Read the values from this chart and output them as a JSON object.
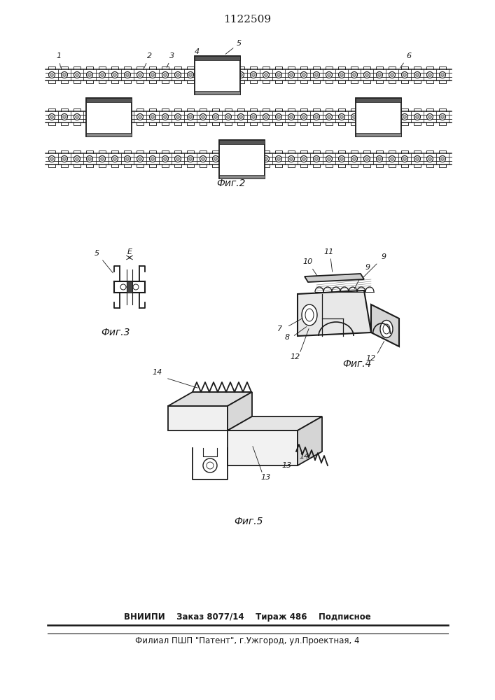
{
  "title": "1122509",
  "footer_line1": "ВНИИПИ    Заказ 8077/14    Тираж 486    Подписное",
  "footer_line2": "Филиал ПШП \"Патент\", г.Ужгород, ул.Проектная, 4",
  "fig2_label": "Фиг.2",
  "fig3_label": "Фиг.3",
  "fig4_label": "Фиг.4",
  "fig5_label": "Фиг.5",
  "bg_color": "#ffffff",
  "line_color": "#1a1a1a"
}
